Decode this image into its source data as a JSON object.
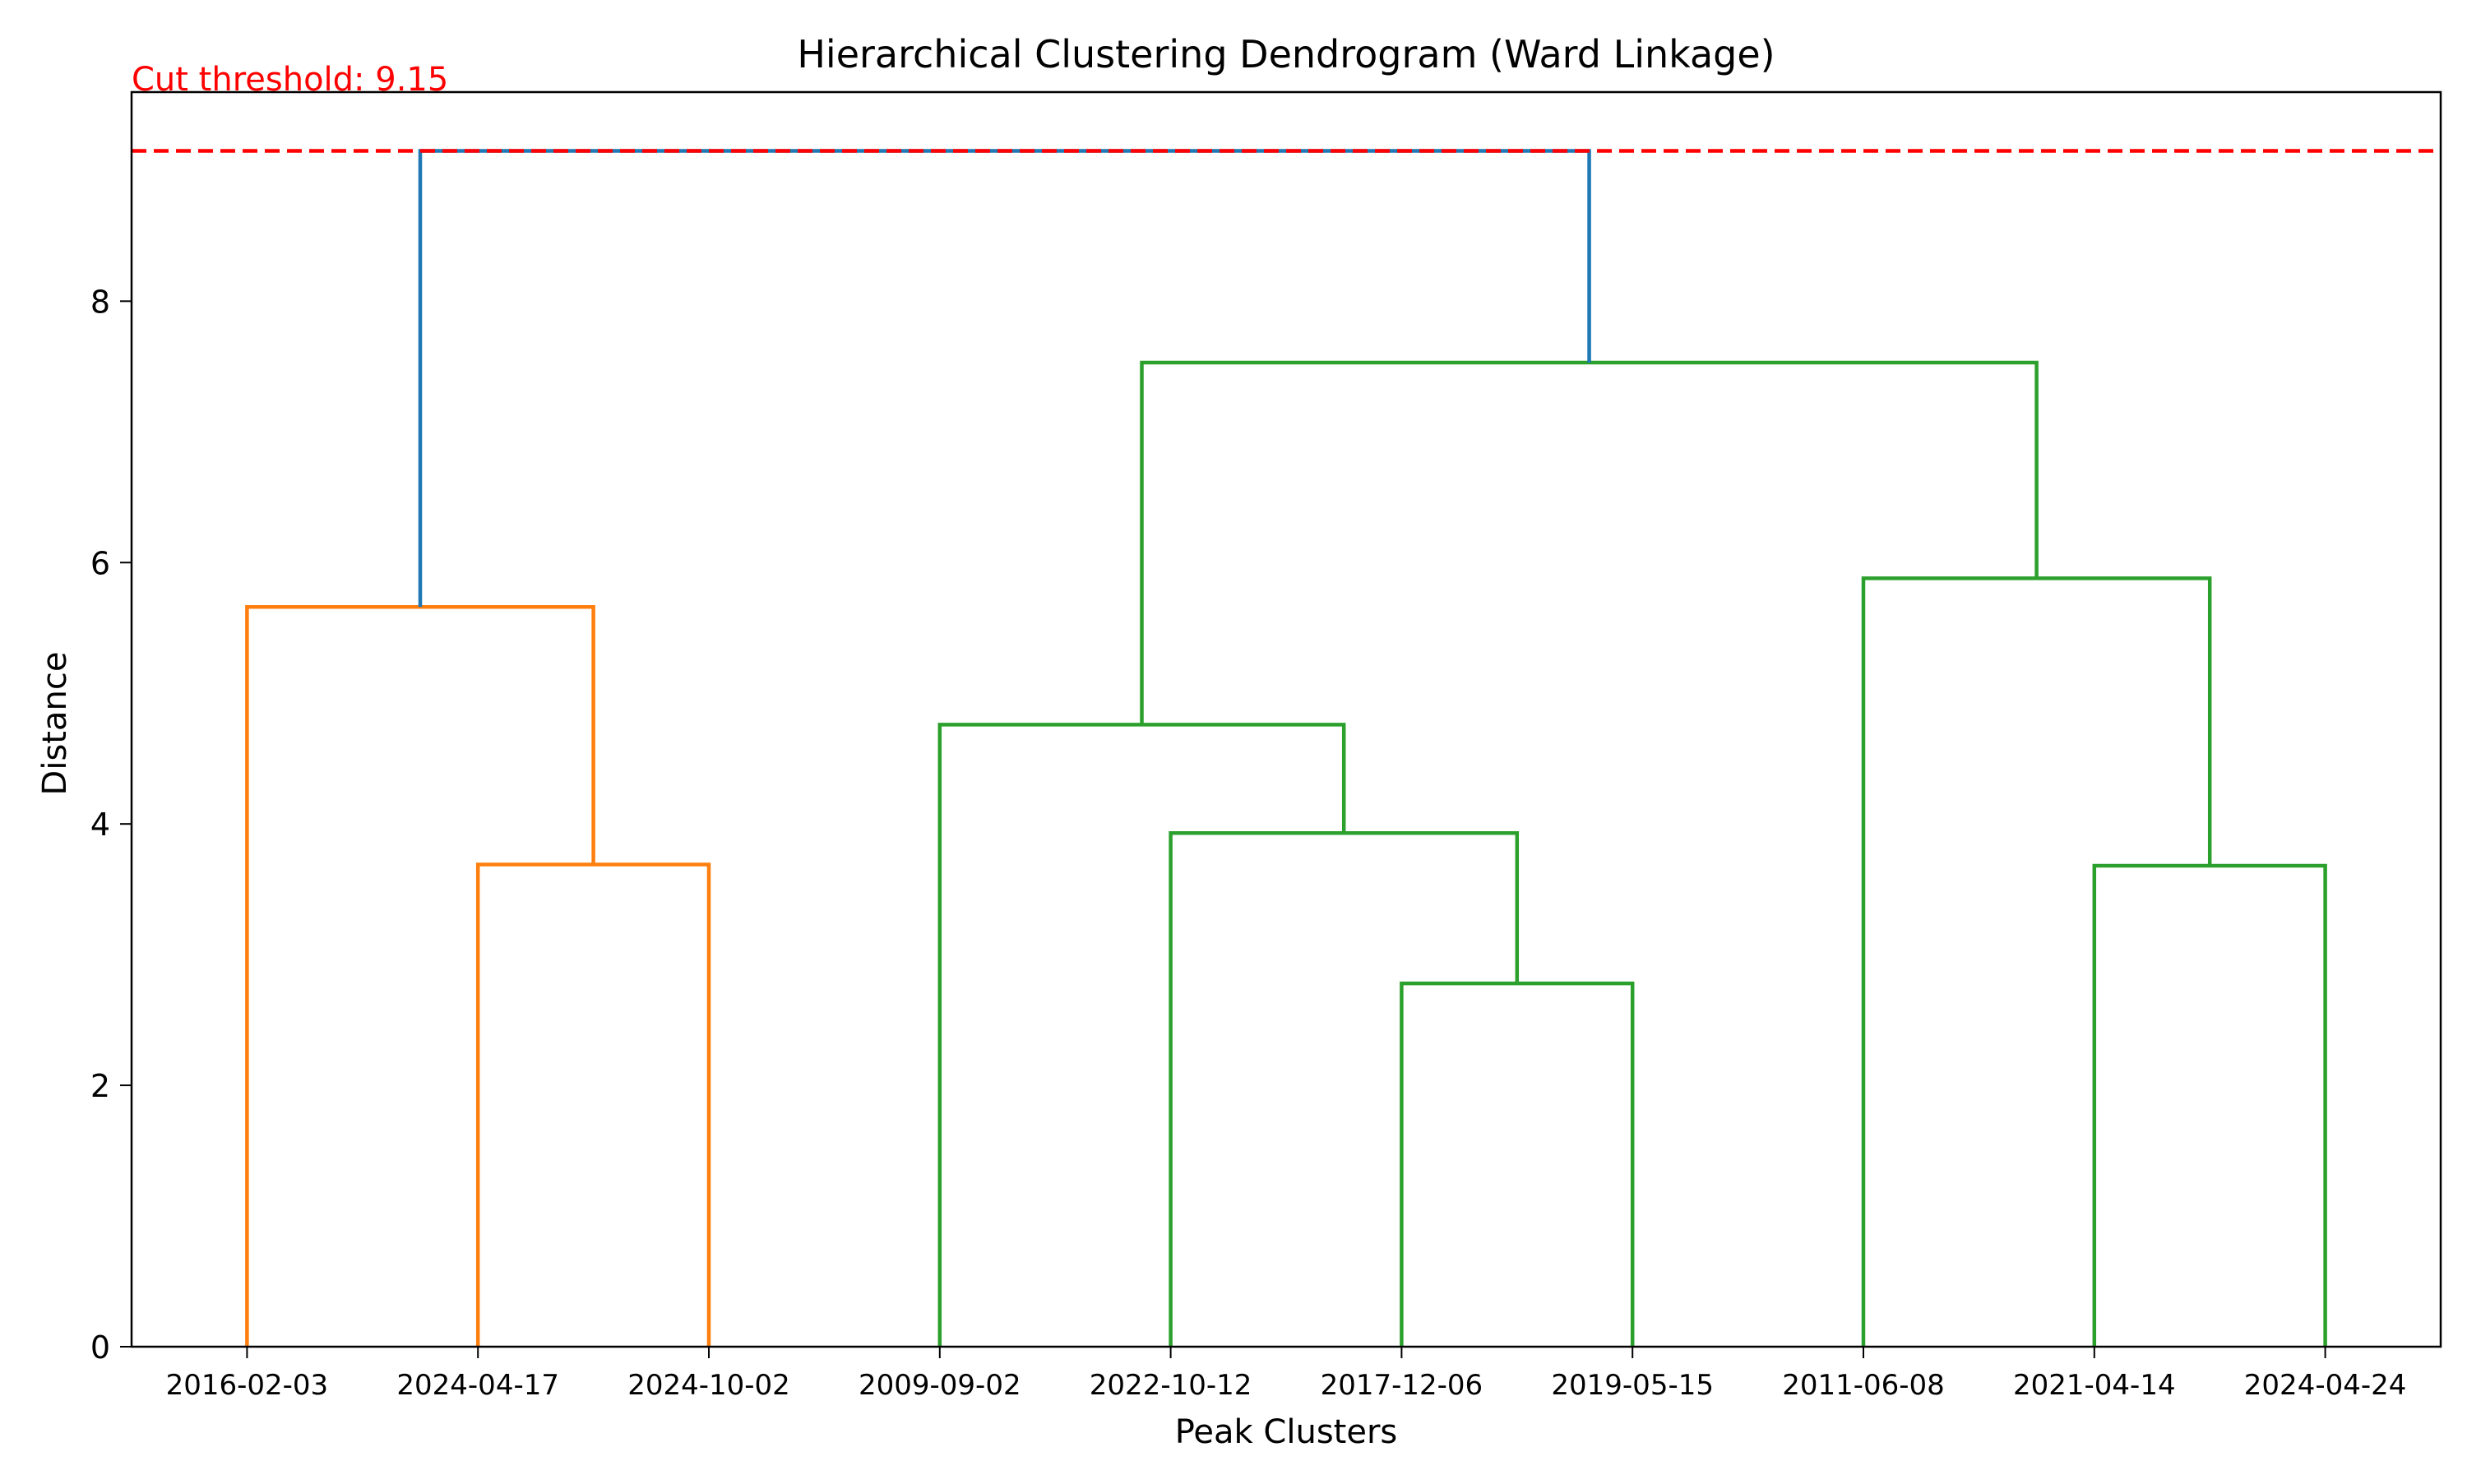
{
  "chart_data": {
    "type": "dendrogram",
    "title": "Hierarchical Clustering Dendrogram (Ward Linkage)",
    "xlabel": "Peak Clusters",
    "ylabel": "Distance",
    "ylim": [
      0,
      9.6
    ],
    "yticks": [
      0,
      2,
      4,
      6,
      8
    ],
    "leaves": [
      "2016-02-03",
      "2024-04-17",
      "2024-10-02",
      "2009-09-02",
      "2022-10-12",
      "2017-12-06",
      "2019-05-15",
      "2011-06-08",
      "2021-04-14",
      "2024-04-24"
    ],
    "threshold": {
      "value": 9.15,
      "label": "Cut threshold: 9.15",
      "color": "#ff0000"
    },
    "merges": [
      {
        "left": "leaf:5",
        "right": "leaf:6",
        "height": 2.78,
        "color": "#2ca02c"
      },
      {
        "left": "leaf:8",
        "right": "leaf:9",
        "height": 3.68,
        "color": "#2ca02c"
      },
      {
        "left": "leaf:1",
        "right": "leaf:2",
        "height": 3.69,
        "color": "#ff7f0e"
      },
      {
        "left": "leaf:4",
        "right": "node:0",
        "height": 3.93,
        "color": "#2ca02c"
      },
      {
        "left": "leaf:3",
        "right": "node:3",
        "height": 4.76,
        "color": "#2ca02c"
      },
      {
        "left": "leaf:0",
        "right": "node:2",
        "height": 5.66,
        "color": "#ff7f0e"
      },
      {
        "left": "leaf:7",
        "right": "node:1",
        "height": 5.88,
        "color": "#2ca02c"
      },
      {
        "left": "node:4",
        "right": "node:6",
        "height": 7.53,
        "color": "#2ca02c"
      },
      {
        "left": "node:5",
        "right": "node:7",
        "height": 9.15,
        "color": "#1f77b4"
      }
    ]
  }
}
